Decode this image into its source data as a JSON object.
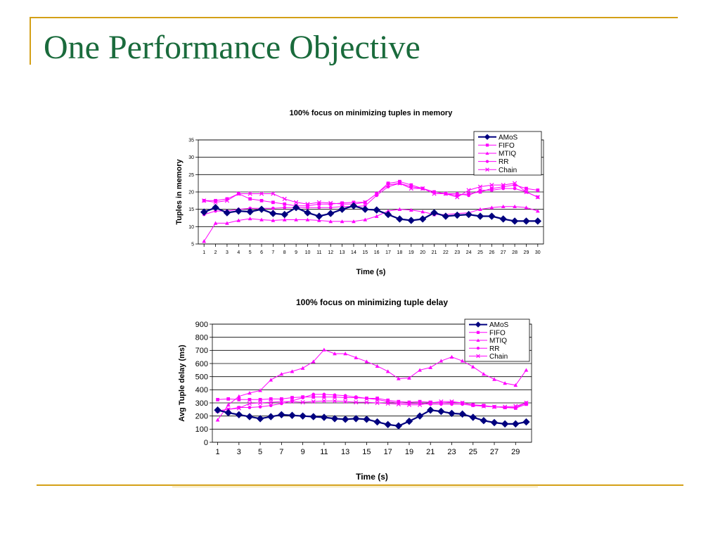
{
  "slide": {
    "title": "One Performance Objective"
  },
  "colors": {
    "accent_gold": "#d4a017",
    "title_green": "#1a6b3c",
    "amos": "#00007f",
    "others": "#ff00ff"
  },
  "chart_data": [
    {
      "type": "line",
      "title": "100% focus on minimizing tuples in memory",
      "xlabel": "Time (s)",
      "ylabel": "Tuples in memory",
      "x": [
        1,
        2,
        3,
        4,
        5,
        6,
        7,
        8,
        9,
        10,
        11,
        12,
        13,
        14,
        15,
        16,
        17,
        18,
        19,
        20,
        21,
        22,
        23,
        24,
        25,
        26,
        27,
        28,
        29,
        30
      ],
      "xticks": [
        "1",
        "2",
        "3",
        "4",
        "5",
        "6",
        "7",
        "8",
        "9",
        "10",
        "11",
        "12",
        "13",
        "14",
        "15",
        "16",
        "17",
        "18",
        "19",
        "20",
        "21",
        "22",
        "23",
        "24",
        "25",
        "26",
        "27",
        "28",
        "29",
        "30"
      ],
      "ylim": [
        5,
        35
      ],
      "yticks": [
        "5",
        "10",
        "15",
        "20",
        "25",
        "30",
        "35"
      ],
      "grid": "horizontal",
      "legend": "top-right",
      "series": [
        {
          "name": "AMoS",
          "marker": "diamond",
          "color": "#00007f",
          "values": [
            14.2,
            15.5,
            14.0,
            14.5,
            14.3,
            15.0,
            13.8,
            13.5,
            15.5,
            14.0,
            13.0,
            13.8,
            15.0,
            16.0,
            15.0,
            14.8,
            13.5,
            12.2,
            11.8,
            12.2,
            14.0,
            13.0,
            13.3,
            13.5,
            13.0,
            13.0,
            12.2,
            11.6,
            11.6,
            11.6
          ]
        },
        {
          "name": "FIFO",
          "marker": "square",
          "color": "#ff00ff",
          "values": [
            17.5,
            17.5,
            18.0,
            19.5,
            18.0,
            17.5,
            17.0,
            16.5,
            16.0,
            16.0,
            16.5,
            16.5,
            16.8,
            17.0,
            17.0,
            19.5,
            22.5,
            23.0,
            22.0,
            21.0,
            20.0,
            19.5,
            19.0,
            19.5,
            20.0,
            21.0,
            21.5,
            22.0,
            21.0,
            20.5
          ]
        },
        {
          "name": "MTIQ",
          "marker": "triangle",
          "color": "#ff00ff",
          "values": [
            5.8,
            11.0,
            11.0,
            11.8,
            12.3,
            12.0,
            11.8,
            12.0,
            12.0,
            12.0,
            11.8,
            11.5,
            11.5,
            11.5,
            12.0,
            13.0,
            14.5,
            15.0,
            14.8,
            14.3,
            13.5,
            13.5,
            13.8,
            14.0,
            15.0,
            15.5,
            15.8,
            15.8,
            15.5,
            14.5
          ]
        },
        {
          "name": "RR",
          "marker": "circle",
          "color": "#ff00ff",
          "values": [
            13.5,
            14.5,
            14.5,
            15.0,
            15.3,
            15.3,
            15.3,
            15.5,
            15.5,
            15.5,
            15.5,
            15.5,
            15.8,
            15.8,
            16.0,
            19.0,
            21.5,
            22.5,
            21.5,
            21.0,
            20.0,
            19.5,
            19.5,
            19.0,
            20.5,
            20.5,
            21.0,
            21.0,
            20.0,
            18.5
          ]
        },
        {
          "name": "Chain",
          "marker": "x",
          "color": "#ff00ff",
          "values": [
            17.5,
            17.0,
            17.5,
            19.5,
            19.5,
            19.5,
            19.5,
            18.0,
            17.0,
            16.5,
            17.0,
            16.8,
            16.5,
            16.5,
            17.0,
            19.5,
            22.0,
            22.5,
            21.0,
            21.0,
            19.5,
            19.5,
            18.5,
            20.5,
            21.5,
            22.0,
            22.0,
            22.5,
            20.0,
            18.5
          ]
        }
      ]
    },
    {
      "type": "line",
      "title": "100% focus on minimizing tuple delay",
      "xlabel": "Time (s)",
      "ylabel": "Avg Tuple delay (ms)",
      "x": [
        1,
        2,
        3,
        4,
        5,
        6,
        7,
        8,
        9,
        10,
        11,
        12,
        13,
        14,
        15,
        16,
        17,
        18,
        19,
        20,
        21,
        22,
        23,
        24,
        25,
        26,
        27,
        28,
        29,
        30
      ],
      "xticks": [
        "1",
        "3",
        "5",
        "7",
        "9",
        "11",
        "13",
        "15",
        "17",
        "19",
        "21",
        "23",
        "25",
        "27",
        "29"
      ],
      "ylim": [
        0,
        900
      ],
      "yticks": [
        "0",
        "100",
        "200",
        "300",
        "400",
        "500",
        "600",
        "700",
        "800",
        "900"
      ],
      "grid": "horizontal",
      "legend": "top-right",
      "series": [
        {
          "name": "AMoS",
          "marker": "diamond",
          "color": "#00007f",
          "values": [
            245,
            225,
            210,
            195,
            180,
            195,
            210,
            205,
            200,
            195,
            190,
            180,
            175,
            180,
            175,
            155,
            135,
            125,
            160,
            200,
            245,
            235,
            220,
            215,
            190,
            165,
            150,
            140,
            140,
            155
          ]
        },
        {
          "name": "FIFO",
          "marker": "square",
          "color": "#ff00ff",
          "values": [
            325,
            330,
            325,
            325,
            325,
            330,
            330,
            340,
            345,
            345,
            345,
            345,
            340,
            340,
            335,
            335,
            320,
            310,
            305,
            310,
            305,
            300,
            305,
            300,
            285,
            280,
            270,
            265,
            260,
            290
          ]
        },
        {
          "name": "MTIQ",
          "marker": "triangle",
          "color": "#ff00ff",
          "values": [
            170,
            285,
            350,
            375,
            395,
            475,
            520,
            540,
            565,
            615,
            705,
            675,
            675,
            645,
            615,
            580,
            540,
            485,
            490,
            550,
            570,
            620,
            650,
            620,
            575,
            520,
            480,
            450,
            435,
            550
          ]
        },
        {
          "name": "RR",
          "marker": "circle",
          "color": "#ff00ff",
          "values": [
            240,
            250,
            265,
            265,
            270,
            280,
            295,
            315,
            340,
            365,
            365,
            360,
            355,
            345,
            335,
            325,
            310,
            300,
            295,
            295,
            290,
            290,
            290,
            290,
            280,
            275,
            270,
            265,
            265,
            300
          ]
        },
        {
          "name": "Chain",
          "marker": "x",
          "color": "#ff00ff",
          "values": [
            240,
            250,
            260,
            295,
            300,
            305,
            310,
            310,
            305,
            310,
            315,
            315,
            310,
            305,
            305,
            300,
            295,
            290,
            285,
            285,
            300,
            310,
            310,
            300,
            285,
            275,
            270,
            270,
            275,
            300
          ]
        }
      ]
    }
  ]
}
